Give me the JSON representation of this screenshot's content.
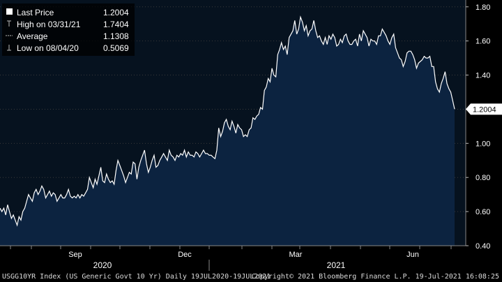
{
  "chart_data": {
    "type": "area",
    "ylim": [
      0.4,
      1.84
    ],
    "ytick_labels": [
      "1.80",
      "1.60",
      "1.40",
      "1.20",
      "1.00",
      "0.80",
      "0.60",
      "0.40"
    ],
    "yticks": [
      1.8,
      1.6,
      1.4,
      1.2,
      1.0,
      0.8,
      0.6,
      0.4
    ],
    "xtick_labels": [
      "Sep",
      "Dec",
      "Mar",
      "Jun"
    ],
    "year_labels": [
      "2020",
      "2021"
    ],
    "last_value_label": "1.2004",
    "last_value": 1.2004,
    "legend": [
      {
        "label": "Last Price",
        "value": "1.2004"
      },
      {
        "label": "High on 03/31/21",
        "value": "1.7404"
      },
      {
        "label": "Average",
        "value": "1.1308"
      },
      {
        "label": "Low on 08/04/20",
        "value": "0.5069"
      }
    ],
    "series": [
      {
        "values": [
          0.62,
          0.6,
          0.62,
          0.58,
          0.64,
          0.6,
          0.56,
          0.58,
          0.55,
          0.52,
          0.57,
          0.55,
          0.6,
          0.62,
          0.66,
          0.7,
          0.68,
          0.66,
          0.71,
          0.73,
          0.7,
          0.72,
          0.75,
          0.73,
          0.68,
          0.7,
          0.72,
          0.69,
          0.71,
          0.7,
          0.66,
          0.68,
          0.7,
          0.68,
          0.68,
          0.7,
          0.73,
          0.69,
          0.68,
          0.69,
          0.68,
          0.7,
          0.68,
          0.7,
          0.69,
          0.71,
          0.73,
          0.8,
          0.77,
          0.74,
          0.79,
          0.76,
          0.81,
          0.86,
          0.78,
          0.77,
          0.82,
          0.79,
          0.77,
          0.78,
          0.76,
          0.84,
          0.9,
          0.87,
          0.84,
          0.81,
          0.77,
          0.8,
          0.83,
          0.82,
          0.89,
          0.88,
          0.79,
          0.86,
          0.9,
          0.93,
          0.96,
          0.88,
          0.83,
          0.86,
          0.9,
          0.93,
          0.86,
          0.87,
          0.9,
          0.92,
          0.94,
          0.92,
          0.9,
          0.96,
          0.93,
          0.92,
          0.9,
          0.93,
          0.92,
          0.94,
          0.93,
          0.96,
          0.92,
          0.95,
          0.93,
          0.93,
          0.92,
          0.95,
          0.94,
          0.92,
          0.94,
          0.96,
          0.94,
          0.94,
          0.93,
          0.93,
          0.92,
          0.91,
          0.96,
          1.09,
          1.04,
          1.07,
          1.12,
          1.14,
          1.1,
          1.08,
          1.13,
          1.1,
          1.06,
          1.11,
          1.09,
          1.08,
          1.04,
          1.05,
          1.04,
          1.08,
          1.09,
          1.15,
          1.14,
          1.16,
          1.17,
          1.21,
          1.2,
          1.31,
          1.33,
          1.38,
          1.36,
          1.44,
          1.4,
          1.39,
          1.52,
          1.55,
          1.59,
          1.55,
          1.57,
          1.52,
          1.62,
          1.64,
          1.66,
          1.72,
          1.64,
          1.67,
          1.74,
          1.71,
          1.66,
          1.69,
          1.63,
          1.66,
          1.67,
          1.72,
          1.66,
          1.62,
          1.63,
          1.6,
          1.58,
          1.62,
          1.58,
          1.63,
          1.61,
          1.64,
          1.62,
          1.57,
          1.58,
          1.61,
          1.59,
          1.63,
          1.64,
          1.6,
          1.58,
          1.58,
          1.6,
          1.61,
          1.57,
          1.64,
          1.6,
          1.66,
          1.64,
          1.62,
          1.57,
          1.61,
          1.6,
          1.6,
          1.58,
          1.63,
          1.63,
          1.67,
          1.65,
          1.63,
          1.6,
          1.58,
          1.62,
          1.64,
          1.56,
          1.53,
          1.5,
          1.49,
          1.45,
          1.48,
          1.53,
          1.54,
          1.54,
          1.52,
          1.49,
          1.44,
          1.47,
          1.48,
          1.49,
          1.51,
          1.5,
          1.5,
          1.51,
          1.45,
          1.45,
          1.36,
          1.32,
          1.3,
          1.35,
          1.38,
          1.42,
          1.35,
          1.32,
          1.3,
          1.25,
          1.2004
        ]
      }
    ]
  },
  "footer": {
    "left": "USGG10YR Index (US Generic Govt 10 Yr)  Daily 19JUL2020-19JUL2021",
    "right": "Copyright© 2021 Bloomberg Finance L.P.   19-Jul-2021 16:08:25"
  },
  "colors": {
    "background": "#000000",
    "plot_bg": "#06121f",
    "area_fill": "#0c2340",
    "line": "#ffffff",
    "grid": "#3a3a3a"
  }
}
